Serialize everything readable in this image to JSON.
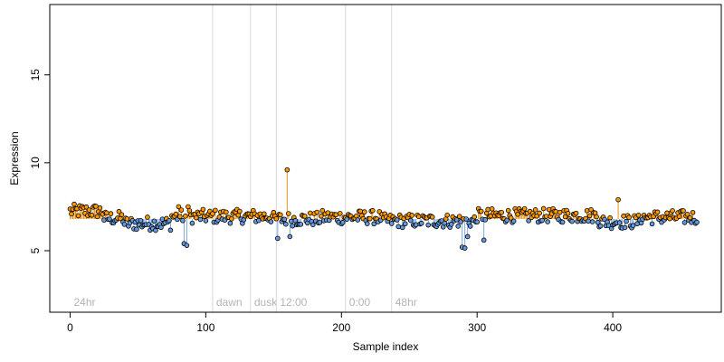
{
  "chart_data": {
    "type": "scatter",
    "title": "",
    "xlabel": "Sample index",
    "ylabel": "Expression",
    "xlim": [
      -15,
      480
    ],
    "ylim": [
      1.5,
      19
    ],
    "x_ticks": [
      0,
      100,
      200,
      300,
      400
    ],
    "y_ticks": [
      5,
      10,
      15
    ],
    "baseline": 6.8,
    "colors": {
      "above": "#ff9900",
      "below": "#6699dd",
      "above_bar": "#e69519",
      "below_bar": "#7aa6d6",
      "vline": "#d8d8d8",
      "vlabel": "#b3b3b3"
    },
    "vertical_markers": [
      {
        "x": 0,
        "label": "24hr",
        "draw_line": false
      },
      {
        "x": 105,
        "label": "dawn",
        "draw_line": true
      },
      {
        "x": 133,
        "label": "dusk",
        "draw_line": true
      },
      {
        "x": 152,
        "label": "12:00",
        "draw_line": true
      },
      {
        "x": 203,
        "label": "0:00",
        "draw_line": true
      },
      {
        "x": 237,
        "label": "48hr",
        "draw_line": true
      }
    ],
    "n_points": 463,
    "outliers": [
      {
        "x": 84,
        "y": 5.4
      },
      {
        "x": 86,
        "y": 5.3
      },
      {
        "x": 80,
        "y": 7.5
      },
      {
        "x": 87,
        "y": 7.5
      },
      {
        "x": 160,
        "y": 9.6
      },
      {
        "x": 153,
        "y": 5.7
      },
      {
        "x": 162,
        "y": 5.8
      },
      {
        "x": 289,
        "y": 5.2
      },
      {
        "x": 291,
        "y": 5.15
      },
      {
        "x": 293,
        "y": 5.8
      },
      {
        "x": 305,
        "y": 5.6
      },
      {
        "x": 404,
        "y": 7.9
      }
    ]
  }
}
